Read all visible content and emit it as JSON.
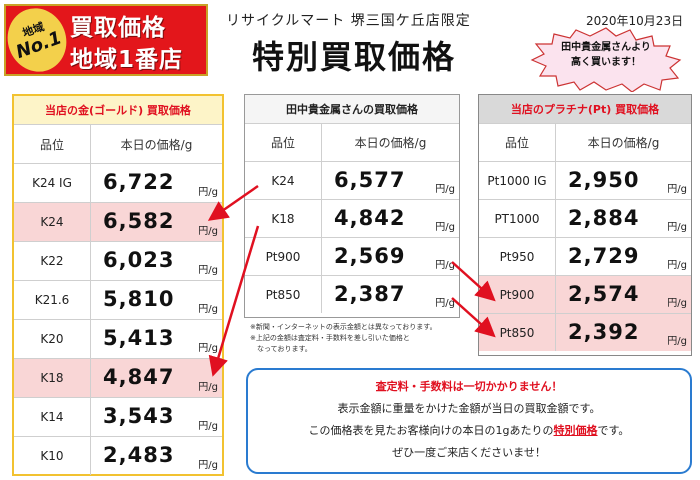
{
  "badge": {
    "circle_small": "地域",
    "circle_large": "No.1",
    "line1": "買取価格",
    "line2": "地域1番店"
  },
  "header": {
    "store": "リサイクルマート 堺三国ケ丘店限定",
    "date": "2020年10月23日",
    "title": "特別買取価格"
  },
  "callout": {
    "line1": "田中貴金属さんより",
    "line2": "高く買います！"
  },
  "columns": {
    "grade": "品位",
    "price": "本日の価格/g",
    "unit": "円/g"
  },
  "gold": {
    "title": "当店の金(ゴールド) 買取価格",
    "rows": [
      {
        "grade": "K24 IG",
        "price": "6,722"
      },
      {
        "grade": "K24",
        "price": "6,582"
      },
      {
        "grade": "K22",
        "price": "6,023"
      },
      {
        "grade": "K21.6",
        "price": "5,810"
      },
      {
        "grade": "K20",
        "price": "5,413"
      },
      {
        "grade": "K18",
        "price": "4,847"
      },
      {
        "grade": "K14",
        "price": "3,543"
      },
      {
        "grade": "K10",
        "price": "2,483"
      }
    ]
  },
  "tanaka": {
    "title": "田中貴金属さんの買取価格",
    "rows": [
      {
        "grade": "K24",
        "price": "6,577"
      },
      {
        "grade": "K18",
        "price": "4,842"
      },
      {
        "grade": "Pt900",
        "price": "2,569"
      },
      {
        "grade": "Pt850",
        "price": "2,387"
      }
    ],
    "notes": [
      "※新聞・インターネットの表示金額とは異なっております。",
      "※上記の金額は査定料・手数料を差し引いた価格と",
      "　なっております。"
    ]
  },
  "platinum": {
    "title": "当店のプラチナ(Pt) 買取価格",
    "rows": [
      {
        "grade": "Pt1000 IG",
        "price": "2,950"
      },
      {
        "grade": "PT1000",
        "price": "2,884"
      },
      {
        "grade": "Pt950",
        "price": "2,729"
      },
      {
        "grade": "Pt900",
        "price": "2,574"
      },
      {
        "grade": "Pt850",
        "price": "2,392"
      }
    ]
  },
  "message": {
    "line1": "査定料・手数料は一切かかりません！",
    "line2": "表示金額に重量をかけた金額が当日の買取金額です。",
    "line3_pre": "この価格表を見たお客様向けの本日の1gあたりの",
    "line3_emph": "特別価格",
    "line3_post": "です。",
    "line4": "ぜひ一度ご来店くださいませ！"
  },
  "colors": {
    "red": "#e01020",
    "gold_border": "#f2c230",
    "highlight": "#f9d6d6",
    "blue": "#2a7bd0",
    "arrow": "#e01020"
  }
}
